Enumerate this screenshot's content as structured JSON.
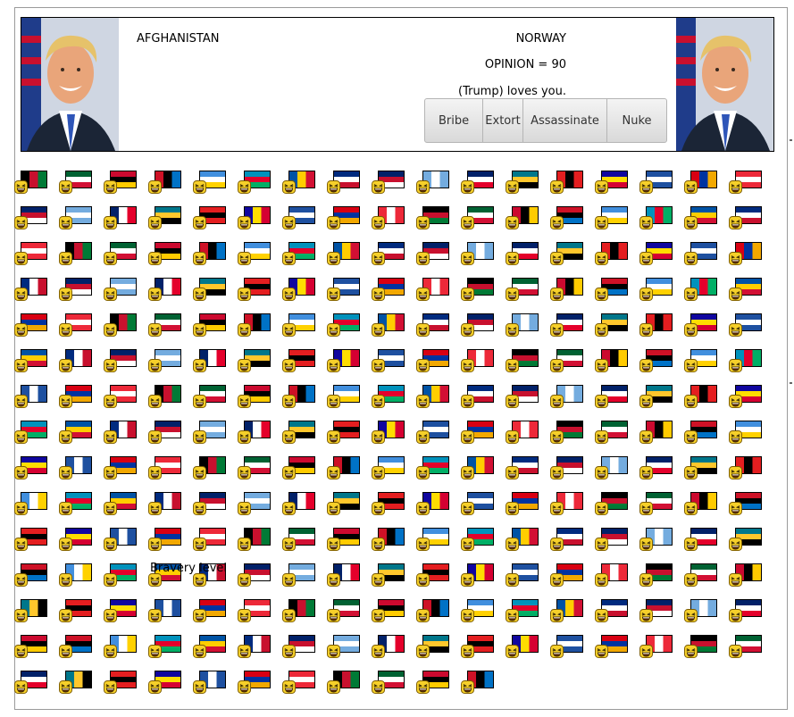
{
  "header": {
    "country_a": "AFGHANISTAN",
    "country_b": "NORWAY",
    "opinion_text": "OPINION = 90",
    "status_text": "(Trump) loves you.",
    "actions": [
      {
        "label": "Bribe"
      },
      {
        "label": "Extort"
      },
      {
        "label": "Assassinate"
      },
      {
        "label": "Nuke"
      }
    ]
  },
  "floating_text": "Bravery level",
  "colors": {
    "face_yellow": "#f6d02a",
    "border": "#000000",
    "button_text": "#333333"
  },
  "grid": {
    "columns": 17,
    "rows": 15,
    "face_icon": "laughing-face-icon",
    "flags": [
      [
        "afghanistan",
        "aland",
        "albania",
        "algeria",
        "american-samoa",
        "andorra",
        "angola",
        "anguilla",
        "antarctica",
        "antigua-barbuda",
        "argentina",
        "armenia",
        "aruba",
        "australia",
        "austria",
        "azerbaijan",
        "bahamas"
      ],
      [
        "bahrain",
        "bangladesh",
        "barbados",
        "belarus",
        "belgium",
        "belize",
        "benin",
        "bermuda",
        "bhutan",
        "bolivia",
        "netherlands-caribbean",
        "bosnia",
        "botswana",
        "bouvet",
        "brazil",
        "british-indian-ocean",
        "brunei"
      ],
      [
        "bulgaria",
        "burkina-faso",
        "burundi",
        "cambodia",
        "cameroon",
        "canada",
        "cape-verde",
        "cayman-islands",
        "central-african-republic",
        "chad",
        "chile",
        "china",
        "christmas-island",
        "cocos",
        "colombia",
        "comoros",
        "congo"
      ],
      [
        "dr-congo",
        "cook-islands",
        "costa-rica",
        "ivory-coast",
        "croatia",
        "cuba",
        "curacao",
        "cyprus",
        "czechia",
        "denmark",
        "djibouti",
        "dominica",
        "dominican-republic",
        "ecuador",
        "egypt",
        "el-salvador",
        "equatorial-guinea"
      ],
      [
        "eritrea",
        "estonia",
        "ethiopia",
        "falklands",
        "faroe",
        "fiji",
        "finland",
        "france",
        "french-guiana",
        "french-polynesia",
        "french-southern",
        "gabon",
        "gambia",
        "georgia",
        "germany",
        "ghana",
        "gibraltar"
      ],
      [
        "greece",
        "greenland",
        "grenada",
        "guadeloupe",
        "guam",
        "guatemala",
        "guernsey",
        "guinea",
        "guinea-bissau",
        "guyana",
        "haiti",
        "heard-island",
        "vatican",
        "honduras",
        "hong-kong",
        "hungary",
        "iceland"
      ],
      [
        "india",
        "indonesia",
        "iran",
        "iraq",
        "ireland",
        "isle-of-man",
        "israel",
        "italy",
        "jamaica",
        "japan",
        "jersey",
        "jordan",
        "kazakhstan",
        "kenya",
        "kiribati",
        "north-korea",
        "south-korea"
      ],
      [
        "kuwait",
        "kyrgyzstan",
        "laos",
        "latvia",
        "lebanon",
        "lesotho",
        "liberia",
        "libya",
        "liechtenstein",
        "lithuania",
        "luxembourg",
        "macao",
        "north-macedonia",
        "madagascar",
        "malawi",
        "malaysia",
        "maldives"
      ],
      [
        "mali",
        "malta",
        "marshall-islands",
        "martinique",
        "mauritania",
        "mauritius",
        "mayotte",
        "mexico",
        "micronesia",
        "moldova",
        "monaco",
        "mongolia",
        "montenegro",
        "montserrat",
        "morocco",
        "mozambique",
        "myanmar"
      ],
      [
        "namibia",
        "nauru",
        "nepal",
        "netherlands",
        "new-caledonia",
        "new-zealand",
        "nicaragua",
        "niger",
        "nigeria",
        "niue",
        "norfolk",
        "northern-mariana",
        "norway",
        "oman",
        "pakistan",
        "palau",
        "palestine"
      ],
      [
        "panama",
        "papua-new-guinea",
        "paraguay",
        "peru",
        "philippines",
        "pitcairn",
        "poland",
        "portugal",
        "puerto-rico",
        "qatar",
        "reunion",
        "romania",
        "russia",
        "rwanda",
        "saint-barthelemy",
        "saint-helena",
        "saint-kitts"
      ],
      [
        "saint-lucia",
        "saint-martin",
        "saint-pierre",
        "saint-vincent",
        "samoa",
        "san-marino",
        "sao-tome",
        "saudi-arabia",
        "senegal",
        "serbia",
        "seychelles",
        "sierra-leone",
        "singapore",
        "sint-maarten",
        "slovakia",
        "slovenia",
        "solomon-islands"
      ],
      [
        "somalia",
        "south-africa",
        "south-georgia",
        "south-sudan",
        "spain",
        "sri-lanka",
        "sudan",
        "suriname",
        "svalbard",
        "eswatini",
        "sweden",
        "switzerland",
        "syria",
        "taiwan",
        "tajikistan",
        "tanzania",
        "thailand"
      ],
      [
        "timor-leste",
        "togo",
        "tokelau",
        "tonga",
        "trinidad",
        "tunisia",
        "turkey",
        "turkmenistan",
        "turks-caicos",
        "tuvalu",
        "uganda",
        "ukraine",
        "uae",
        "united-kingdom",
        "united-states",
        "us-minor-islands",
        "uruguay"
      ],
      [
        "uzbekistan",
        "vanuatu",
        "venezuela",
        "vietnam",
        "british-virgin-islands",
        "us-virgin-islands",
        "wallis-futuna",
        "western-sahara",
        "yemen",
        "zambia",
        "zimbabwe"
      ]
    ]
  }
}
